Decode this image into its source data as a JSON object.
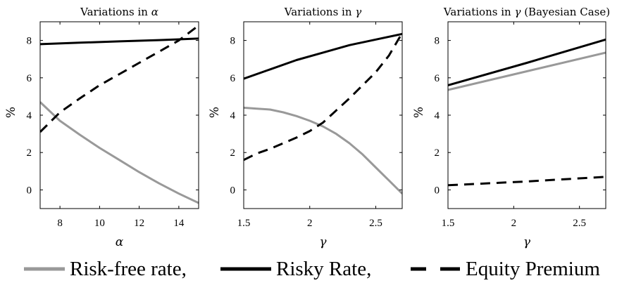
{
  "legend": [
    {
      "label": "Risk-free rate,",
      "color": "#999999",
      "dash": "solid"
    },
    {
      "label": "Risky Rate,",
      "color": "#000000",
      "dash": "solid"
    },
    {
      "label": "Equity Premium",
      "color": "#000000",
      "dash": "dashed"
    }
  ],
  "chart_data": [
    {
      "type": "line",
      "title": "Variations in α",
      "title_prefix": "Variations in ",
      "title_symbol": "α",
      "title_suffix": "",
      "xlabel": "α",
      "ylabel": "%",
      "xlim": [
        7,
        15
      ],
      "ylim": [
        -1,
        9
      ],
      "xticks": [
        8,
        10,
        12,
        14
      ],
      "yticks": [
        0,
        2,
        4,
        6,
        8
      ],
      "series": [
        {
          "name": "Risk-free rate",
          "color": "#999999",
          "dash": "solid",
          "x": [
            7,
            8,
            9,
            10,
            11,
            12,
            13,
            14,
            15
          ],
          "y": [
            4.7,
            3.7,
            2.95,
            2.25,
            1.6,
            0.95,
            0.35,
            -0.2,
            -0.7
          ]
        },
        {
          "name": "Risky Rate",
          "color": "#000000",
          "dash": "solid",
          "x": [
            7,
            9,
            11,
            13,
            15
          ],
          "y": [
            7.8,
            7.88,
            7.95,
            8.02,
            8.1
          ]
        },
        {
          "name": "Equity Premium",
          "color": "#000000",
          "dash": "dashed",
          "x": [
            7,
            8,
            9,
            10,
            11,
            12,
            13,
            14,
            15
          ],
          "y": [
            3.1,
            4.15,
            4.9,
            5.6,
            6.2,
            6.8,
            7.4,
            8.0,
            8.8
          ]
        }
      ]
    },
    {
      "type": "line",
      "title": "Variations in γ",
      "title_prefix": "Variations in ",
      "title_symbol": "γ",
      "title_suffix": "",
      "xlabel": "γ",
      "ylabel": "%",
      "xlim": [
        1.5,
        2.7
      ],
      "ylim": [
        -1,
        9
      ],
      "xticks": [
        1.5,
        2,
        2.5
      ],
      "yticks": [
        0,
        2,
        4,
        6,
        8
      ],
      "series": [
        {
          "name": "Risk-free rate",
          "color": "#999999",
          "dash": "solid",
          "x": [
            1.5,
            1.6,
            1.7,
            1.8,
            1.9,
            2.0,
            2.1,
            2.2,
            2.3,
            2.4,
            2.5,
            2.6,
            2.7
          ],
          "y": [
            4.4,
            4.35,
            4.3,
            4.15,
            3.95,
            3.7,
            3.4,
            3.0,
            2.5,
            1.9,
            1.2,
            0.5,
            -0.2
          ]
        },
        {
          "name": "Risky Rate",
          "color": "#000000",
          "dash": "solid",
          "x": [
            1.5,
            1.7,
            1.9,
            2.1,
            2.3,
            2.5,
            2.7
          ],
          "y": [
            5.95,
            6.45,
            6.95,
            7.35,
            7.75,
            8.05,
            8.35
          ]
        },
        {
          "name": "Equity Premium",
          "color": "#000000",
          "dash": "dashed",
          "x": [
            1.5,
            1.6,
            1.7,
            1.8,
            1.9,
            2.0,
            2.1,
            2.2,
            2.3,
            2.4,
            2.5,
            2.6,
            2.7
          ],
          "y": [
            1.6,
            1.95,
            2.2,
            2.5,
            2.8,
            3.15,
            3.6,
            4.25,
            4.9,
            5.6,
            6.3,
            7.2,
            8.4
          ]
        }
      ]
    },
    {
      "type": "line",
      "title": "Variations in γ (Bayesian Case)",
      "title_prefix": "Variations in ",
      "title_symbol": "γ",
      "title_suffix": " (Bayesian Case)",
      "xlabel": "γ",
      "ylabel": "%",
      "xlim": [
        1.5,
        2.7
      ],
      "ylim": [
        -1,
        9
      ],
      "xticks": [
        1.5,
        2,
        2.5
      ],
      "yticks": [
        0,
        2,
        4,
        6,
        8
      ],
      "series": [
        {
          "name": "Risk-free rate",
          "color": "#999999",
          "dash": "solid",
          "x": [
            1.5,
            2.1,
            2.7
          ],
          "y": [
            5.35,
            6.35,
            7.35
          ]
        },
        {
          "name": "Risky Rate",
          "color": "#000000",
          "dash": "solid",
          "x": [
            1.5,
            2.1,
            2.7
          ],
          "y": [
            5.6,
            6.8,
            8.05
          ]
        },
        {
          "name": "Equity Premium",
          "color": "#000000",
          "dash": "dashed",
          "x": [
            1.5,
            2.1,
            2.7
          ],
          "y": [
            0.25,
            0.45,
            0.7
          ]
        }
      ]
    }
  ]
}
